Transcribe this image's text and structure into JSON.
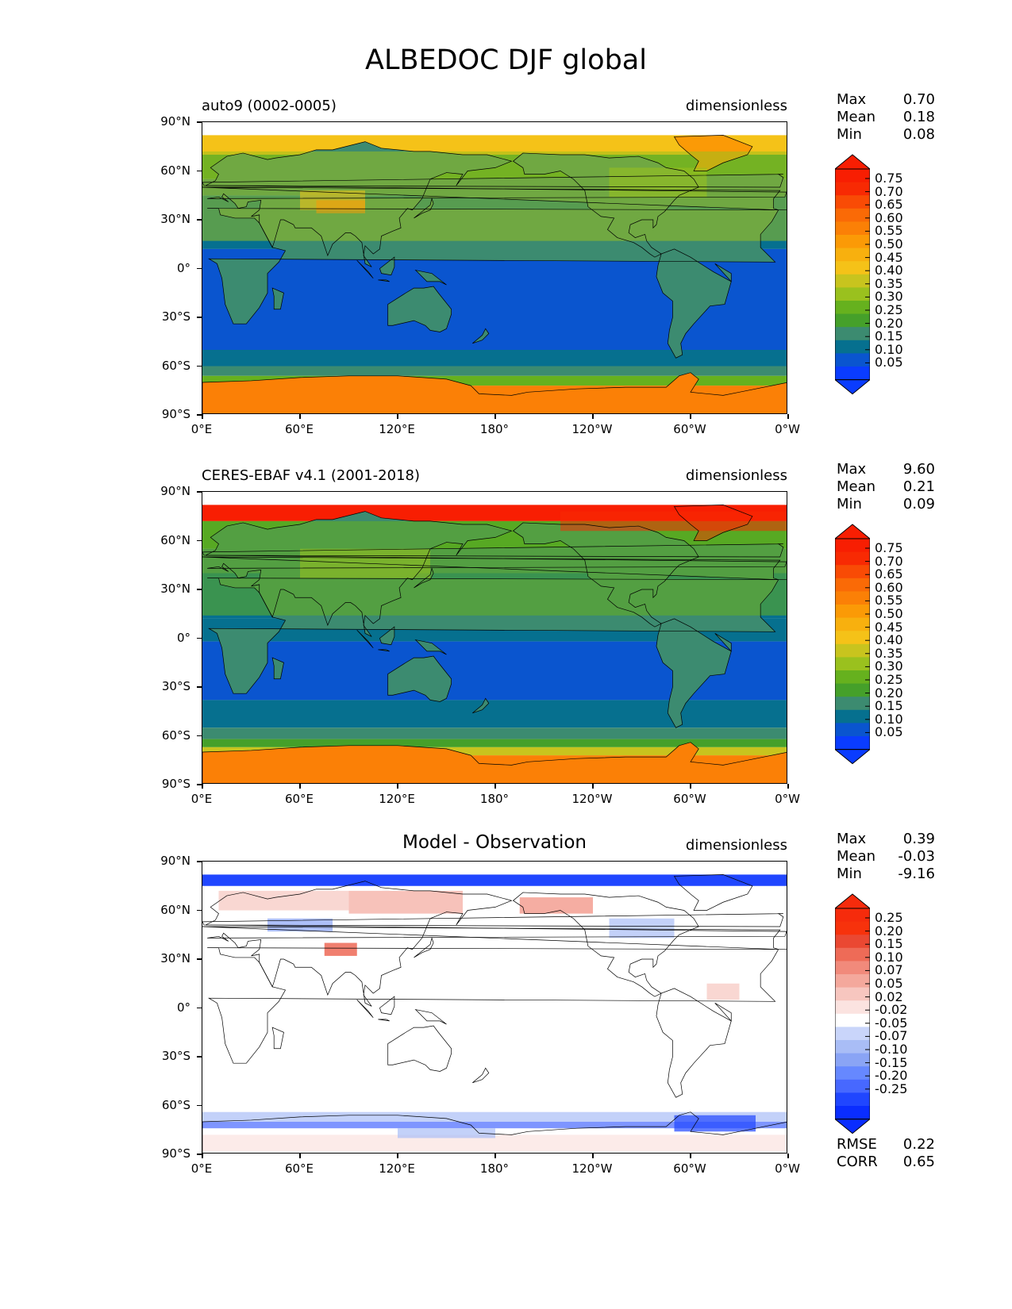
{
  "title": "ALBEDOC DJF global",
  "panels": [
    {
      "id": "model",
      "title": "auto9 (0002-0005)",
      "units": "dimensionless",
      "stats": [
        {
          "label": "Max",
          "value": "0.70"
        },
        {
          "label": "Mean",
          "value": "0.18"
        },
        {
          "label": "Min",
          "value": "0.08"
        }
      ],
      "colorbar_levels": [
        "0.75",
        "0.70",
        "0.65",
        "0.60",
        "0.55",
        "0.50",
        "0.45",
        "0.40",
        "0.35",
        "0.30",
        "0.25",
        "0.20",
        "0.15",
        "0.10",
        "0.05"
      ]
    },
    {
      "id": "obs",
      "title": "CERES-EBAF v4.1 (2001-2018)",
      "units": "dimensionless",
      "stats": [
        {
          "label": "Max",
          "value": "9.60"
        },
        {
          "label": "Mean",
          "value": "0.21"
        },
        {
          "label": "Min",
          "value": "0.09"
        }
      ],
      "colorbar_levels": [
        "0.75",
        "0.70",
        "0.65",
        "0.60",
        "0.55",
        "0.50",
        "0.45",
        "0.40",
        "0.35",
        "0.30",
        "0.25",
        "0.20",
        "0.15",
        "0.10",
        "0.05"
      ]
    },
    {
      "id": "diff",
      "title": "Model - Observation",
      "units": "dimensionless",
      "stats": [
        {
          "label": "Max",
          "value": "0.39"
        },
        {
          "label": "Mean",
          "value": "-0.03"
        },
        {
          "label": "Min",
          "value": "-9.16"
        }
      ],
      "colorbar_levels": [
        "0.25",
        "0.20",
        "0.15",
        "0.10",
        "0.07",
        "0.05",
        "0.02",
        "-0.02",
        "-0.05",
        "-0.07",
        "-0.10",
        "-0.15",
        "-0.20",
        "-0.25"
      ],
      "metrics": [
        {
          "label": "RMSE",
          "value": "0.22"
        },
        {
          "label": "CORR",
          "value": "0.65"
        }
      ]
    }
  ],
  "lat_ticks": [
    "90°N",
    "60°N",
    "30°N",
    "0°",
    "30°S",
    "60°S",
    "90°S"
  ],
  "lon_ticks": [
    "0°E",
    "60°E",
    "120°E",
    "180°",
    "120°W",
    "60°W",
    "0°W"
  ],
  "colors": {
    "field_scale": [
      "#0a3cff",
      "#0a55cf",
      "#06708f",
      "#3c8b70",
      "#45a02a",
      "#66b11e",
      "#9ac11e",
      "#c8c41e",
      "#f5c218",
      "#f8b00e",
      "#fb9a06",
      "#fb8006",
      "#fa6a06",
      "#f94b05",
      "#f82a03",
      "#f81e02"
    ],
    "diff_scale": [
      "#0a2dff",
      "#2046ff",
      "#4768ff",
      "#6688ff",
      "#8aa4f5",
      "#a9bdf6",
      "#c9d5fa",
      "#ffffff",
      "#fbe3e0",
      "#f7c6bf",
      "#f4a89c",
      "#f18a7b",
      "#ee6b57",
      "#ea4832",
      "#f7320c",
      "#f62b0c"
    ]
  }
}
